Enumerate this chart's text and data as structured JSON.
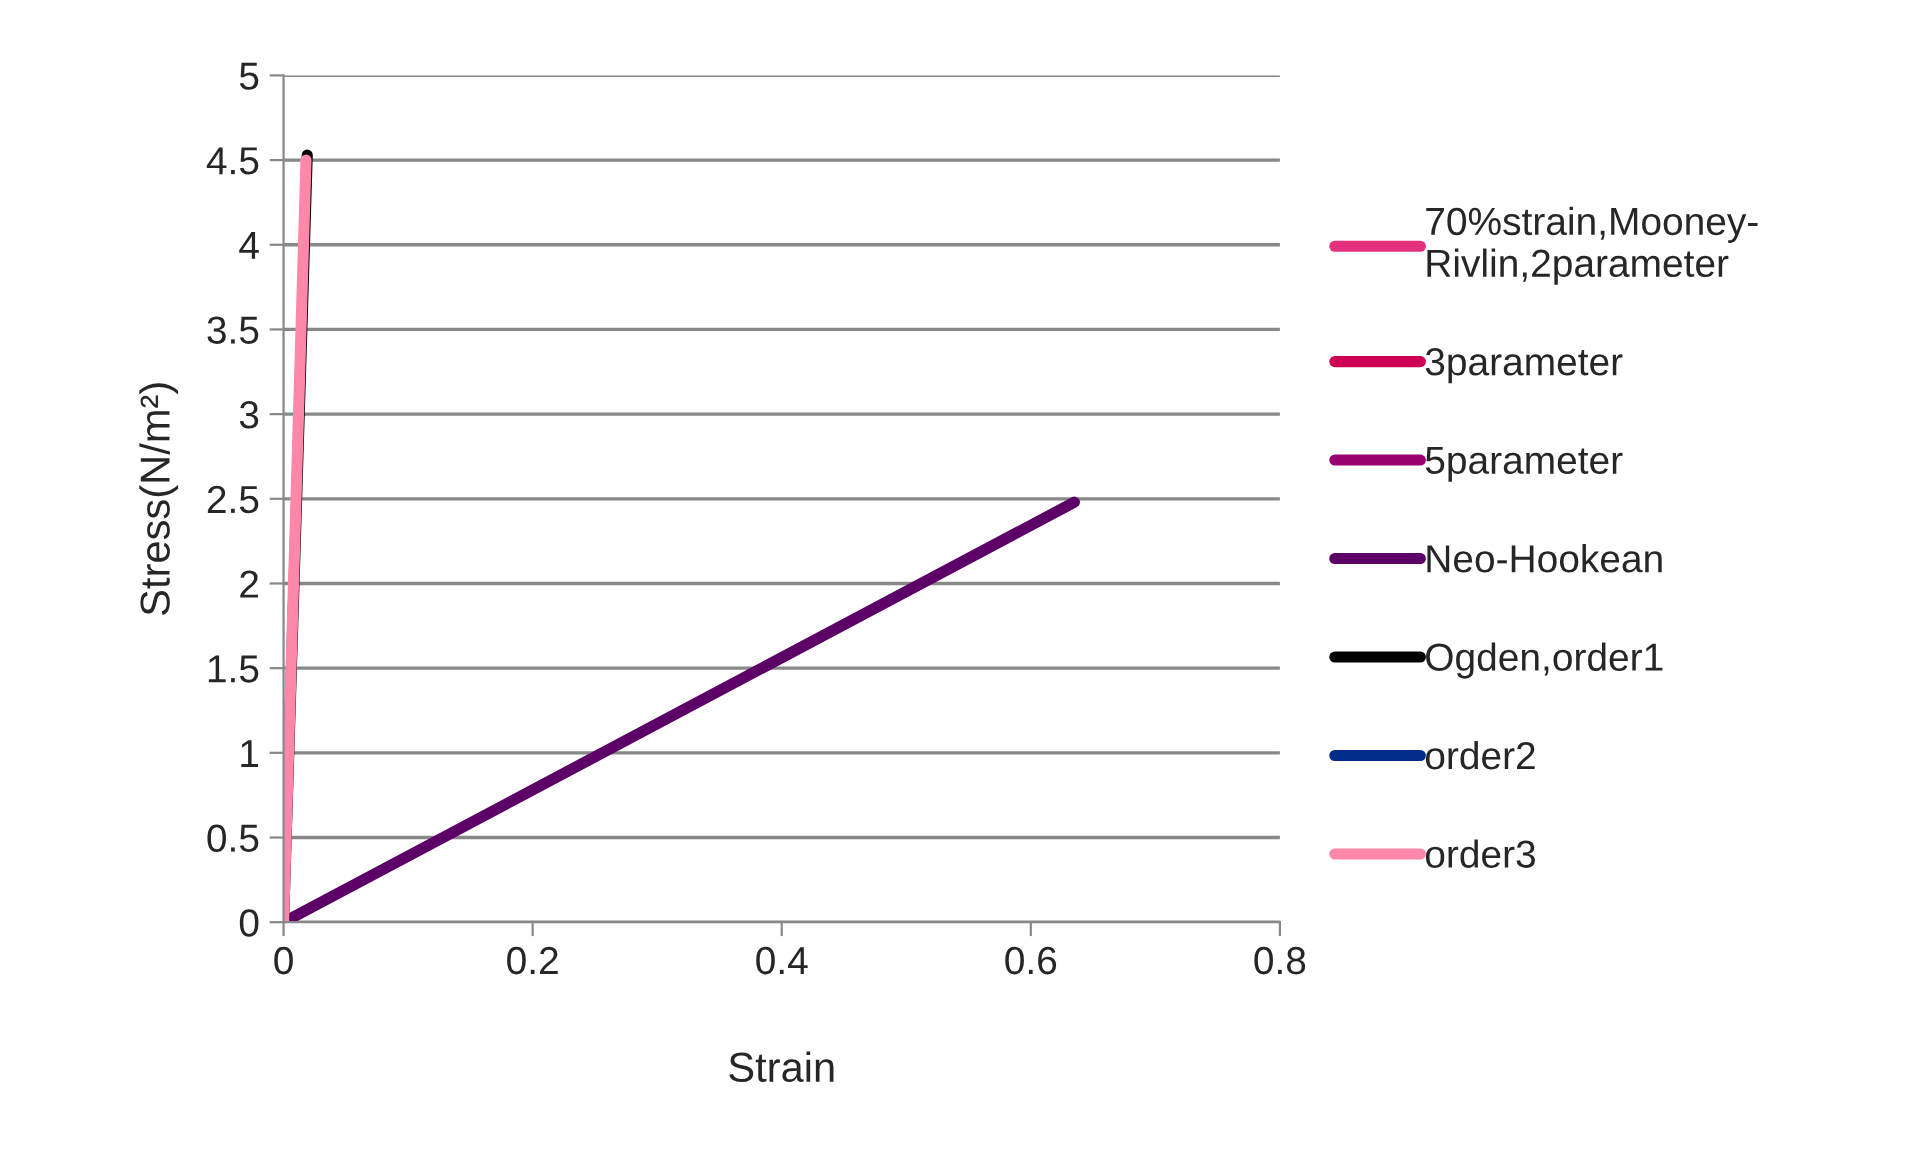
{
  "chart_data": {
    "type": "line",
    "xlabel": "Strain",
    "ylabel": "Stress(N/m²)",
    "series": [
      {
        "name": "70%strain,Mooney-Rivlin,2parameter",
        "color": "#e2307c",
        "values": [
          null,
          null
        ]
      },
      {
        "name": "3parameter",
        "color": "#cc0055",
        "values": [
          null,
          null
        ]
      },
      {
        "name": "5parameter",
        "color": "#990070",
        "values": [
          null,
          null
        ]
      },
      {
        "name": "Neo-Hookean",
        "color": "#5c0068",
        "x": [
          0,
          0.635
        ],
        "values": [
          0,
          2.48
        ]
      },
      {
        "name": "Ogden,order1",
        "color": "#000000",
        "x": [
          0,
          0.019
        ],
        "values": [
          0,
          4.53
        ]
      },
      {
        "name": "order2",
        "color": "#002d8a",
        "values": [
          null,
          null
        ]
      },
      {
        "name": "order3",
        "color": "#ff88aa",
        "x": [
          0,
          0.018
        ],
        "values": [
          0,
          4.5
        ]
      }
    ],
    "xlim": [
      0,
      0.8
    ],
    "xticks": [
      0,
      0.2,
      0.4,
      0.6,
      0.8
    ],
    "ylim": [
      0,
      5
    ],
    "yticks": [
      0,
      0.5,
      1,
      1.5,
      2,
      2.5,
      3,
      3.5,
      4,
      4.5,
      5
    ],
    "grid": "y",
    "legend": "right",
    "marker": "none",
    "line_style": "solid"
  }
}
